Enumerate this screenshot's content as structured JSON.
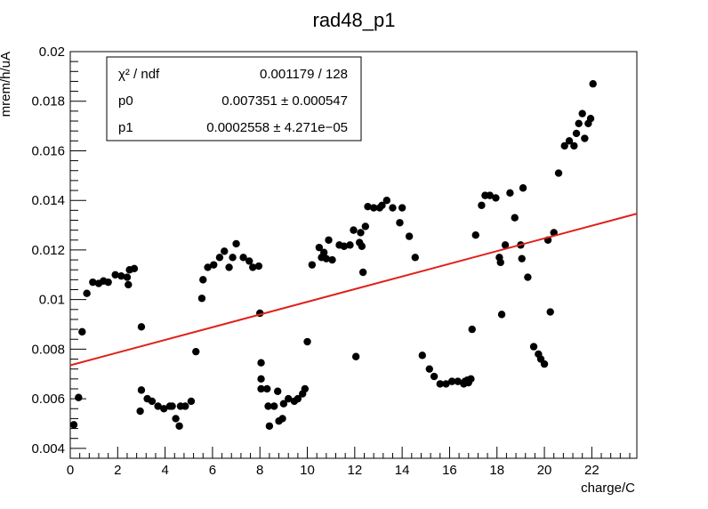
{
  "chart_data": {
    "type": "scatter",
    "title": "rad48_p1",
    "xlabel": "charge/C",
    "ylabel": "mrem/h/uA",
    "xlim": [
      0,
      23.9
    ],
    "ylim": [
      0.0036,
      0.02
    ],
    "x_ticks": [
      0,
      2,
      4,
      6,
      8,
      10,
      12,
      14,
      16,
      18,
      20,
      22
    ],
    "x_tick_labels": [
      "0",
      "2",
      "4",
      "6",
      "8",
      "10",
      "12",
      "14",
      "16",
      "18",
      "20",
      "22"
    ],
    "y_ticks": [
      0.004,
      0.006,
      0.008,
      0.01,
      0.012,
      0.014,
      0.016,
      0.018,
      0.02
    ],
    "y_tick_labels": [
      "0.004",
      "0.006",
      "0.008",
      "0.01",
      "0.012",
      "0.014",
      "0.016",
      "0.018",
      "0.02"
    ],
    "grid": false,
    "legend": "none",
    "stats_box": {
      "rows": [
        {
          "name": "χ² / ndf",
          "value": "0.001179 / 128"
        },
        {
          "name": "p0",
          "value": "0.007351 ± 0.000547"
        },
        {
          "name": "p1",
          "value": "0.0002558 ± 4.271e−05"
        }
      ]
    },
    "fit": {
      "p0": 0.007351,
      "p1": 0.0002558,
      "x_range": [
        0,
        23.9
      ],
      "color": "#e0201b"
    },
    "marker_color": "#000000",
    "points": [
      [
        0.15,
        0.00495
      ],
      [
        0.35,
        0.00605
      ],
      [
        0.5,
        0.0087
      ],
      [
        0.7,
        0.01025
      ],
      [
        0.95,
        0.0107
      ],
      [
        1.2,
        0.01065
      ],
      [
        1.4,
        0.01075
      ],
      [
        1.6,
        0.0107
      ],
      [
        1.9,
        0.011
      ],
      [
        2.15,
        0.01095
      ],
      [
        2.4,
        0.0109
      ],
      [
        2.45,
        0.0106
      ],
      [
        2.5,
        0.0112
      ],
      [
        2.7,
        0.01125
      ],
      [
        2.95,
        0.0055
      ],
      [
        3.0,
        0.0089
      ],
      [
        3.0,
        0.00635
      ],
      [
        3.25,
        0.006
      ],
      [
        3.45,
        0.0059
      ],
      [
        3.7,
        0.0057
      ],
      [
        3.95,
        0.0056
      ],
      [
        4.2,
        0.0057
      ],
      [
        4.3,
        0.0057
      ],
      [
        4.45,
        0.0052
      ],
      [
        4.6,
        0.0049
      ],
      [
        4.65,
        0.0057
      ],
      [
        4.85,
        0.0057
      ],
      [
        5.1,
        0.0059
      ],
      [
        5.3,
        0.0079
      ],
      [
        5.55,
        0.01005
      ],
      [
        5.6,
        0.0108
      ],
      [
        5.8,
        0.0113
      ],
      [
        6.05,
        0.0114
      ],
      [
        6.3,
        0.0117
      ],
      [
        6.5,
        0.01195
      ],
      [
        6.7,
        0.0113
      ],
      [
        6.85,
        0.0117
      ],
      [
        7.0,
        0.01225
      ],
      [
        7.3,
        0.0117
      ],
      [
        7.55,
        0.01155
      ],
      [
        7.7,
        0.0113
      ],
      [
        7.95,
        0.01135
      ],
      [
        8.0,
        0.00945
      ],
      [
        8.05,
        0.00745
      ],
      [
        8.05,
        0.0068
      ],
      [
        8.05,
        0.0064
      ],
      [
        8.3,
        0.0064
      ],
      [
        8.35,
        0.0057
      ],
      [
        8.4,
        0.0049
      ],
      [
        8.6,
        0.0057
      ],
      [
        8.75,
        0.0063
      ],
      [
        8.8,
        0.0051
      ],
      [
        8.95,
        0.0052
      ],
      [
        9.0,
        0.0058
      ],
      [
        9.2,
        0.006
      ],
      [
        9.45,
        0.0059
      ],
      [
        9.6,
        0.006
      ],
      [
        9.8,
        0.0062
      ],
      [
        9.9,
        0.0064
      ],
      [
        10.0,
        0.0083
      ],
      [
        10.2,
        0.0114
      ],
      [
        10.5,
        0.0121
      ],
      [
        10.6,
        0.0117
      ],
      [
        10.7,
        0.0119
      ],
      [
        10.8,
        0.01165
      ],
      [
        10.9,
        0.0124
      ],
      [
        11.05,
        0.0116
      ],
      [
        11.35,
        0.0122
      ],
      [
        11.55,
        0.01215
      ],
      [
        11.8,
        0.0122
      ],
      [
        11.95,
        0.0128
      ],
      [
        12.05,
        0.0077
      ],
      [
        12.2,
        0.0123
      ],
      [
        12.25,
        0.0127
      ],
      [
        12.3,
        0.01215
      ],
      [
        12.35,
        0.0111
      ],
      [
        12.45,
        0.01295
      ],
      [
        12.55,
        0.01375
      ],
      [
        12.8,
        0.0137
      ],
      [
        13.05,
        0.0137
      ],
      [
        13.15,
        0.0138
      ],
      [
        13.35,
        0.014
      ],
      [
        13.6,
        0.0137
      ],
      [
        13.9,
        0.0131
      ],
      [
        14.0,
        0.0137
      ],
      [
        14.3,
        0.01255
      ],
      [
        14.55,
        0.0117
      ],
      [
        14.85,
        0.00775
      ],
      [
        15.15,
        0.0072
      ],
      [
        15.35,
        0.0069
      ],
      [
        15.6,
        0.0066
      ],
      [
        15.85,
        0.0066
      ],
      [
        16.1,
        0.0067
      ],
      [
        16.35,
        0.0067
      ],
      [
        16.6,
        0.0066
      ],
      [
        16.65,
        0.0067
      ],
      [
        16.75,
        0.00675
      ],
      [
        16.8,
        0.00665
      ],
      [
        16.9,
        0.0068
      ],
      [
        16.95,
        0.0088
      ],
      [
        17.1,
        0.0126
      ],
      [
        17.35,
        0.0138
      ],
      [
        17.5,
        0.0142
      ],
      [
        17.7,
        0.0142
      ],
      [
        17.95,
        0.0141
      ],
      [
        18.1,
        0.0117
      ],
      [
        18.15,
        0.0115
      ],
      [
        18.2,
        0.0094
      ],
      [
        18.35,
        0.0122
      ],
      [
        18.55,
        0.0143
      ],
      [
        18.75,
        0.0133
      ],
      [
        19.0,
        0.0122
      ],
      [
        19.05,
        0.01165
      ],
      [
        19.1,
        0.0145
      ],
      [
        19.3,
        0.0109
      ],
      [
        19.55,
        0.0081
      ],
      [
        19.75,
        0.0078
      ],
      [
        19.85,
        0.0076
      ],
      [
        20.0,
        0.0074
      ],
      [
        20.15,
        0.0124
      ],
      [
        20.25,
        0.0095
      ],
      [
        20.4,
        0.0127
      ],
      [
        20.6,
        0.0151
      ],
      [
        20.85,
        0.0162
      ],
      [
        21.05,
        0.0164
      ],
      [
        21.25,
        0.0162
      ],
      [
        21.35,
        0.0167
      ],
      [
        21.45,
        0.0171
      ],
      [
        21.6,
        0.0175
      ],
      [
        21.7,
        0.0165
      ],
      [
        21.85,
        0.0171
      ],
      [
        21.95,
        0.0173
      ],
      [
        22.05,
        0.0187
      ]
    ]
  }
}
